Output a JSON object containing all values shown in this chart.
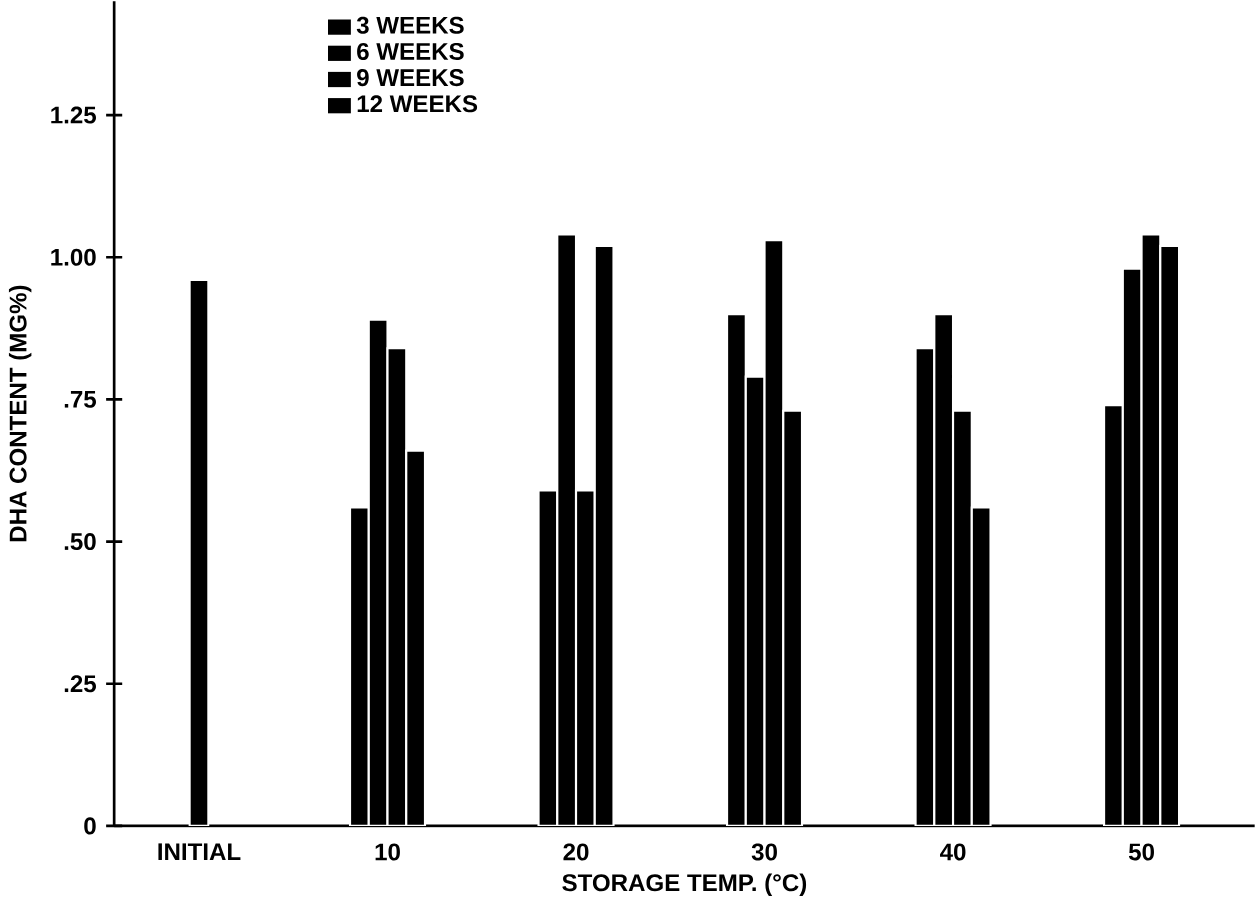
{
  "chart_data": {
    "type": "bar",
    "xlabel": "STORAGE  TEMP. (°C)",
    "ylabel": "DHA  CONTENT  (MG%)",
    "categories": [
      "INITIAL",
      "10",
      "20",
      "30",
      "40",
      "50"
    ],
    "series": [
      {
        "color": "#000000",
        "values": [
          0.96,
          null,
          null,
          null,
          null,
          null
        ]
      },
      {
        "name": "3 WEEKS",
        "color": "#000000",
        "values": [
          null,
          0.56,
          0.59,
          0.9,
          0.84,
          0.74
        ]
      },
      {
        "name": "6 WEEKS",
        "color": "#000000",
        "values": [
          null,
          0.89,
          1.04,
          0.79,
          0.9,
          0.98
        ]
      },
      {
        "name": "9 WEEKS",
        "color": "#000000",
        "values": [
          null,
          0.84,
          0.59,
          1.03,
          0.73,
          1.04
        ]
      },
      {
        "name": "12 WEEKS",
        "color": "#000000",
        "values": [
          null,
          0.66,
          1.02,
          0.73,
          0.56,
          1.02
        ]
      }
    ],
    "ylim": [
      0,
      1.45
    ],
    "yticks": [
      0,
      {
        "value": 0.25,
        "label": ".25"
      },
      {
        "value": 0.5,
        "label": ".50"
      },
      {
        "value": 0.75,
        "label": ".75"
      },
      {
        "value": 1.0,
        "label": "1.00"
      },
      {
        "value": 1.25,
        "label": "1.25"
      }
    ],
    "legend": "top left",
    "grid": false
  }
}
